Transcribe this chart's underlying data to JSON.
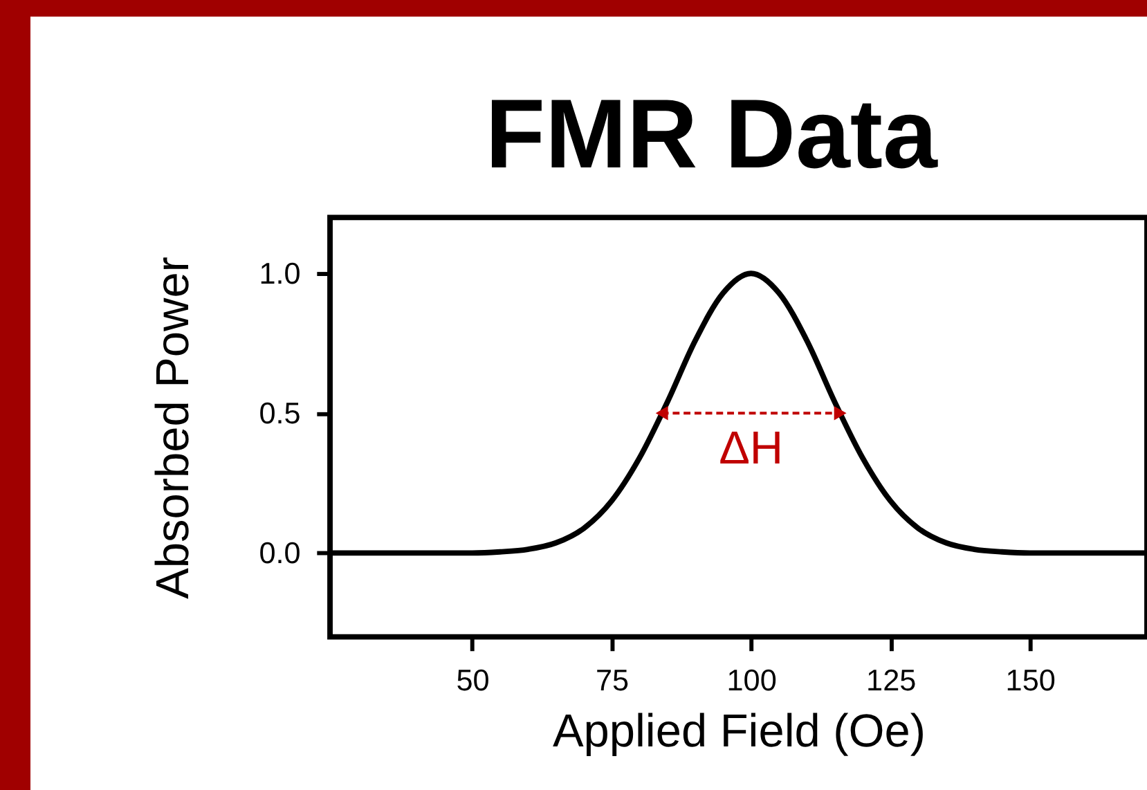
{
  "chart_data": {
    "type": "line",
    "title": "FMR Data",
    "xlabel": "Applied Field (Oe)",
    "ylabel": "Absorbed Power",
    "x": [
      24.5,
      50,
      55,
      60,
      65,
      70,
      75,
      80,
      85,
      90,
      95,
      100,
      105,
      110,
      115,
      120,
      125,
      130,
      135,
      140,
      145,
      150,
      171
    ],
    "series": [
      {
        "color": "#000000",
        "values": [
          0,
          0,
          0.004,
          0.013,
          0.036,
          0.088,
          0.186,
          0.34,
          0.54,
          0.76,
          0.93,
          1.0,
          0.93,
          0.76,
          0.54,
          0.34,
          0.186,
          0.088,
          0.036,
          0.013,
          0.004,
          0,
          0
        ]
      }
    ],
    "xlim": [
      24.5,
      171
    ],
    "xticks": [
      50,
      75,
      100,
      125,
      150
    ],
    "ylim": [
      -0.3,
      1.2
    ],
    "yticks": [
      {
        "value": 0,
        "label": "0.0"
      },
      {
        "value": 0.5,
        "label": "0.5"
      },
      {
        "value": 1,
        "label": "1.0"
      }
    ],
    "annotations": [
      "ΔH"
    ],
    "grid": false,
    "marker": "none",
    "line_style": "solid"
  }
}
